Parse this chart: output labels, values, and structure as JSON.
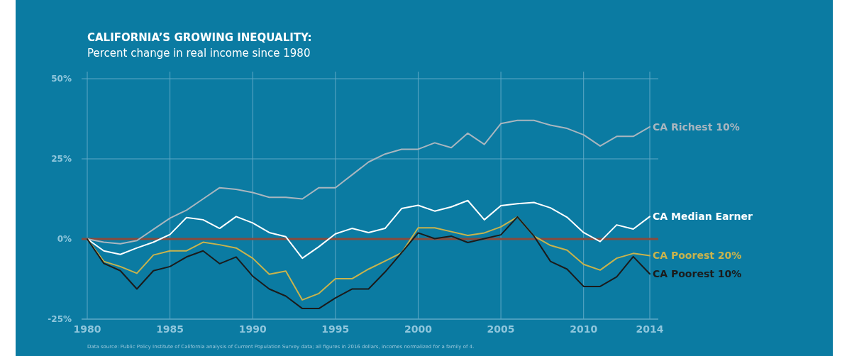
{
  "chart_data": {
    "type": "line",
    "title": "CALIFORNIA’S GROWING INEQUALITY:",
    "subtitle": "Percent change in real income since 1980",
    "x": [
      1980,
      1981,
      1982,
      1983,
      1984,
      1985,
      1986,
      1987,
      1988,
      1989,
      1990,
      1991,
      1992,
      1993,
      1994,
      1995,
      1996,
      1997,
      1998,
      1999,
      2000,
      2001,
      2002,
      2003,
      2004,
      2005,
      2006,
      2007,
      2008,
      2009,
      2010,
      2011,
      2012,
      2013,
      2014
    ],
    "series": [
      {
        "name": "CA Richest 10%",
        "color": "#a9b6bf",
        "values": [
          0,
          -1,
          -1.5,
          -0.5,
          3,
          6.5,
          9,
          12.5,
          16,
          15.5,
          14.5,
          13,
          13,
          12.5,
          16,
          16,
          20,
          24,
          26.5,
          28,
          28,
          30,
          28.5,
          33,
          29.5,
          36,
          37,
          37,
          35.5,
          34.5,
          32.5,
          29,
          32,
          32,
          35
        ]
      },
      {
        "name": "CA Median Earner",
        "color": "#ffffff",
        "values": [
          0,
          -3.7,
          -4.8,
          -2.8,
          -1,
          1.4,
          6.7,
          6,
          3.3,
          7,
          5,
          2,
          0.7,
          -6,
          -2.4,
          1.6,
          3.3,
          2,
          3.3,
          9.5,
          10.5,
          8.7,
          10,
          12,
          6,
          10.4,
          11,
          11.4,
          9.7,
          6.8,
          2,
          -0.8,
          4.4,
          3.1,
          7
        ]
      },
      {
        "name": "CA Poorest 20%",
        "color": "#c9b34c",
        "values": [
          0,
          -7,
          -8.6,
          -10.7,
          -5,
          -3.7,
          -3.7,
          -1,
          -1.8,
          -2.8,
          -6,
          -11,
          -10,
          -19,
          -17,
          -12.4,
          -12.4,
          -9.4,
          -6.9,
          -4.3,
          3.5,
          3.5,
          2.3,
          1.1,
          1.9,
          3.8,
          6.9,
          0.9,
          -2,
          -3.5,
          -7.9,
          -9.7,
          -6,
          -4.5,
          -5.2
        ]
      },
      {
        "name": "CA Poorest 10%",
        "color": "#1b1b1b",
        "values": [
          0,
          -7.6,
          -9.9,
          -15.6,
          -9.9,
          -8.6,
          -5.6,
          -3.7,
          -7.7,
          -5.6,
          -11.6,
          -15.6,
          -17.8,
          -21.7,
          -21.7,
          -18.4,
          -15.6,
          -15.6,
          -10.3,
          -4.3,
          1.9,
          0.1,
          0.9,
          -1.1,
          0.1,
          1.3,
          6.9,
          0.9,
          -7,
          -9.4,
          -14.8,
          -14.8,
          -11.8,
          -5.5,
          -10.9
        ]
      }
    ],
    "xlim": [
      1980,
      2014
    ],
    "xticks": [
      1980,
      1985,
      1990,
      1995,
      2000,
      2005,
      2010,
      2014
    ],
    "ylim": [
      -25,
      50
    ],
    "yticks": [
      {
        "value": -25,
        "label": "-25%"
      },
      {
        "value": 0,
        "label": "0%"
      },
      {
        "value": 25,
        "label": "25%"
      },
      {
        "value": 50,
        "label": "50%"
      }
    ],
    "grid": true,
    "ref_lines": [
      {
        "axis": "y",
        "value": 0,
        "color": "#8a4a3c"
      }
    ],
    "annotations": [
      "Data source: Public Policy Institute of California analysis of Current Population Survey data; all figures in 2016 dollars, incomes normalized for a family of 4."
    ]
  }
}
